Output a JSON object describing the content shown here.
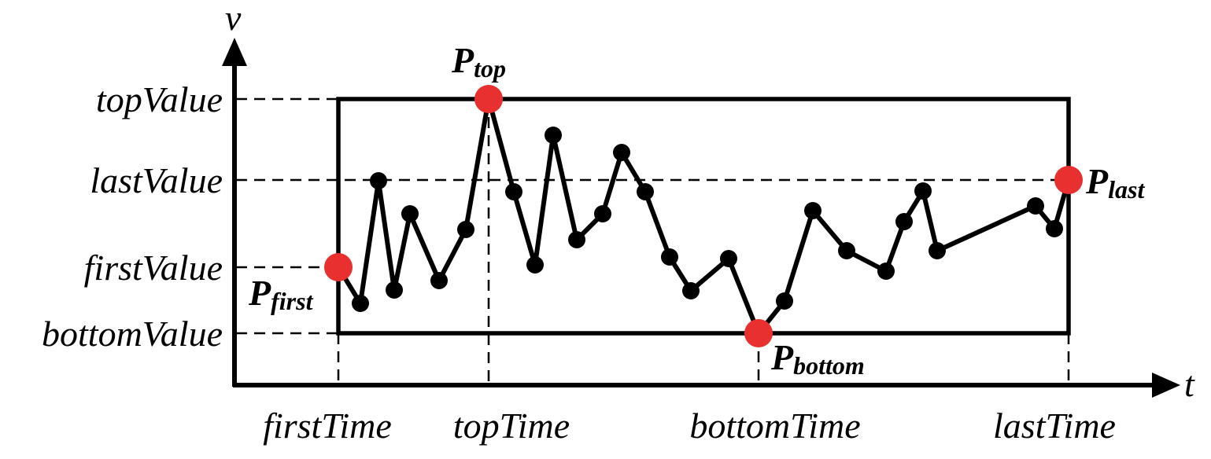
{
  "axes": {
    "v_label": "v",
    "t_label": "t"
  },
  "value_labels": {
    "top": "topValue",
    "last": "lastValue",
    "first": "firstValue",
    "bottom": "bottomValue"
  },
  "time_labels": {
    "first": "firstTime",
    "top": "topTime",
    "bottom": "bottomTime",
    "last": "lastTime"
  },
  "points": {
    "first": {
      "main": "P",
      "sub": "first"
    },
    "top": {
      "main": "P",
      "sub": "top"
    },
    "bottom": {
      "main": "P",
      "sub": "bottom"
    },
    "last": {
      "main": "P",
      "sub": "last"
    }
  },
  "colors": {
    "line": "#000000",
    "special_point": "#e8302e",
    "normal_point": "#000000"
  }
}
